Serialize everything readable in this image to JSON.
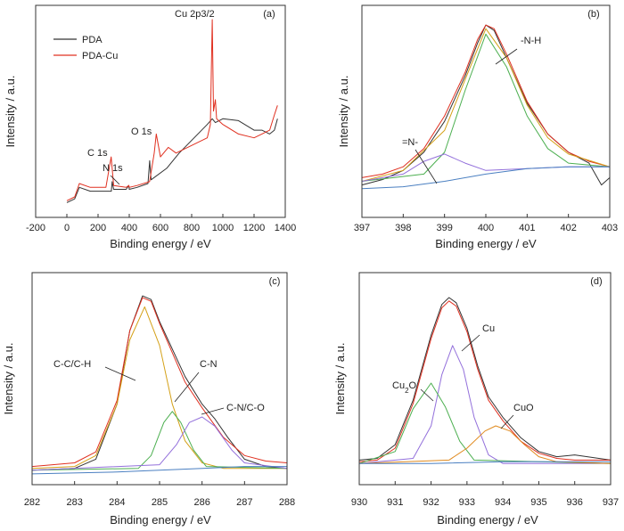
{
  "chart_data": [
    {
      "type": "line",
      "panel_label": "(a)",
      "xlabel": "Binding energy / eV",
      "ylabel": "Intensity / a.u.",
      "xlim": [
        -200,
        1400
      ],
      "xticks": [
        "-200",
        "0",
        "200",
        "400",
        "600",
        "800",
        "1000",
        "1200",
        "1400"
      ],
      "legend": {
        "position": "top-left"
      },
      "series": [
        {
          "name": "PDA",
          "color": "#333333",
          "x": [
            0,
            50,
            80,
            150,
            250,
            285,
            290,
            300,
            380,
            397,
            400,
            450,
            520,
            531,
            540,
            640,
            700,
            720,
            900,
            932,
            952,
            1000,
            1100,
            1200,
            1250,
            1300,
            1330,
            1350
          ],
          "y": [
            0.04,
            0.06,
            0.12,
            0.1,
            0.1,
            0.1,
            0.15,
            0.11,
            0.11,
            0.13,
            0.11,
            0.12,
            0.14,
            0.26,
            0.16,
            0.22,
            0.28,
            0.3,
            0.45,
            0.48,
            0.46,
            0.48,
            0.47,
            0.42,
            0.42,
            0.4,
            0.42,
            0.48
          ]
        },
        {
          "name": "PDA-Cu",
          "color": "#e03020",
          "x": [
            0,
            50,
            80,
            150,
            250,
            284,
            300,
            380,
            397,
            400,
            450,
            530,
            560,
            573,
            600,
            650,
            700,
            900,
            920,
            932,
            940,
            952,
            960,
            1000,
            1100,
            1200,
            1250,
            1300,
            1330,
            1350
          ],
          "y": [
            0.05,
            0.07,
            0.14,
            0.12,
            0.12,
            0.28,
            0.13,
            0.12,
            0.13,
            0.12,
            0.13,
            0.15,
            0.3,
            0.4,
            0.28,
            0.33,
            0.3,
            0.38,
            0.45,
            1.0,
            0.52,
            0.58,
            0.48,
            0.45,
            0.4,
            0.38,
            0.4,
            0.42,
            0.5,
            0.55
          ]
        }
      ],
      "annotations": [
        "C 1s",
        "N 1s",
        "O 1s",
        "Cu 2p3/2"
      ]
    },
    {
      "type": "line",
      "panel_label": "(b)",
      "xlabel": "Binding energy / eV",
      "ylabel": "Intensity / a.u.",
      "xlim": [
        397,
        403
      ],
      "xticks": [
        "397",
        "398",
        "399",
        "400",
        "401",
        "402",
        "403"
      ],
      "series": [
        {
          "color": "#333333",
          "x": [
            397.0,
            397.5,
            398.0,
            398.5,
            399.0,
            399.5,
            399.8,
            400.0,
            400.2,
            400.5,
            401.0,
            401.5,
            402.0,
            402.5,
            402.8,
            403.0
          ],
          "y": [
            0.1,
            0.13,
            0.18,
            0.28,
            0.45,
            0.7,
            0.88,
            0.98,
            0.95,
            0.8,
            0.55,
            0.38,
            0.28,
            0.22,
            0.1,
            0.14
          ]
        },
        {
          "color": "#e03020",
          "x": [
            397.0,
            397.5,
            398.0,
            398.5,
            399.0,
            399.5,
            399.8,
            400.0,
            400.2,
            400.5,
            401.0,
            401.5,
            402.0,
            402.5,
            403.0
          ],
          "y": [
            0.14,
            0.16,
            0.2,
            0.3,
            0.48,
            0.72,
            0.9,
            0.98,
            0.96,
            0.82,
            0.56,
            0.38,
            0.28,
            0.23,
            0.2
          ]
        },
        {
          "color": "#d4a017",
          "x": [
            397.0,
            398.0,
            399.0,
            399.5,
            400.0,
            400.5,
            401.0,
            401.5,
            402.0,
            403.0
          ],
          "y": [
            0.12,
            0.18,
            0.4,
            0.68,
            0.96,
            0.8,
            0.54,
            0.36,
            0.27,
            0.2
          ]
        },
        {
          "color": "#4caf50",
          "x": [
            397.0,
            398.5,
            399.0,
            399.5,
            400.0,
            400.5,
            401.0,
            401.5,
            402.0,
            403.0
          ],
          "y": [
            0.12,
            0.16,
            0.28,
            0.62,
            0.93,
            0.75,
            0.48,
            0.3,
            0.22,
            0.2
          ]
        },
        {
          "color": "#9370db",
          "x": [
            397.0,
            398.0,
            398.5,
            399.0,
            399.5,
            400.0,
            401.0,
            402.0,
            403.0
          ],
          "y": [
            0.12,
            0.16,
            0.23,
            0.27,
            0.22,
            0.18,
            0.19,
            0.2,
            0.2
          ]
        },
        {
          "color": "#4a7fc1",
          "x": [
            397.0,
            398.0,
            399.0,
            400.0,
            401.0,
            402.0,
            403.0
          ],
          "y": [
            0.08,
            0.09,
            0.12,
            0.16,
            0.19,
            0.2,
            0.2
          ]
        }
      ],
      "annotations": [
        "-N-H",
        "=N-"
      ]
    },
    {
      "type": "line",
      "panel_label": "(c)",
      "xlabel": "Binding energy / eV",
      "ylabel": "Intensity / a.u.",
      "xlim": [
        282,
        288
      ],
      "xticks": [
        "282",
        "283",
        "284",
        "285",
        "286",
        "287",
        "288"
      ],
      "series": [
        {
          "color": "#333333",
          "x": [
            282.0,
            283.0,
            283.5,
            284.0,
            284.3,
            284.6,
            284.8,
            285.0,
            285.3,
            285.6,
            286.0,
            286.3,
            286.6,
            287.0,
            287.5,
            288.0
          ],
          "y": [
            0.04,
            0.05,
            0.1,
            0.4,
            0.8,
            0.99,
            0.97,
            0.85,
            0.7,
            0.55,
            0.4,
            0.32,
            0.22,
            0.1,
            0.06,
            0.05
          ]
        },
        {
          "color": "#e03020",
          "x": [
            282.0,
            283.0,
            283.5,
            284.0,
            284.3,
            284.6,
            284.8,
            285.0,
            285.3,
            285.6,
            286.0,
            286.5,
            287.0,
            287.5,
            288.0
          ],
          "y": [
            0.06,
            0.08,
            0.14,
            0.42,
            0.8,
            0.98,
            0.96,
            0.84,
            0.68,
            0.52,
            0.38,
            0.22,
            0.12,
            0.09,
            0.08
          ]
        },
        {
          "color": "#d4a017",
          "x": [
            282.0,
            283.0,
            283.5,
            284.0,
            284.3,
            284.65,
            285.0,
            285.3,
            285.6,
            286.0,
            286.5,
            287.0,
            288.0
          ],
          "y": [
            0.05,
            0.06,
            0.12,
            0.4,
            0.75,
            0.93,
            0.72,
            0.4,
            0.2,
            0.08,
            0.05,
            0.05,
            0.05
          ]
        },
        {
          "color": "#4caf50",
          "x": [
            282.0,
            284.5,
            284.8,
            285.1,
            285.3,
            285.5,
            285.8,
            286.1,
            288.0
          ],
          "y": [
            0.04,
            0.05,
            0.12,
            0.3,
            0.36,
            0.3,
            0.15,
            0.06,
            0.05
          ]
        },
        {
          "color": "#9370db",
          "x": [
            282.0,
            285.0,
            285.4,
            285.7,
            286.0,
            286.3,
            286.7,
            287.0,
            288.0
          ],
          "y": [
            0.04,
            0.07,
            0.18,
            0.3,
            0.33,
            0.28,
            0.15,
            0.08,
            0.05
          ]
        },
        {
          "color": "#4a7fc1",
          "x": [
            282.0,
            284.0,
            285.0,
            286.0,
            287.0,
            288.0
          ],
          "y": [
            0.02,
            0.03,
            0.04,
            0.05,
            0.06,
            0.06
          ]
        }
      ],
      "annotations": [
        "C-C/C-H",
        "C-N",
        "C-N/C-O"
      ]
    },
    {
      "type": "line",
      "panel_label": "(d)",
      "xlabel": "Binding energy / eV",
      "ylabel": "Intensity / a.u.",
      "xlim": [
        930,
        937
      ],
      "xticks": [
        "930",
        "931",
        "932",
        "933",
        "934",
        "935",
        "936",
        "937"
      ],
      "series": [
        {
          "color": "#333333",
          "x": [
            930.0,
            930.5,
            931.0,
            931.5,
            932.0,
            932.3,
            932.5,
            932.7,
            933.0,
            933.3,
            933.6,
            934.0,
            934.5,
            935.0,
            935.5,
            936.0,
            937.0
          ],
          "y": [
            0.05,
            0.06,
            0.14,
            0.4,
            0.78,
            0.96,
            1.0,
            0.97,
            0.82,
            0.6,
            0.42,
            0.3,
            0.18,
            0.1,
            0.07,
            0.08,
            0.05
          ]
        },
        {
          "color": "#e03020",
          "x": [
            930.0,
            930.5,
            931.0,
            931.5,
            932.0,
            932.3,
            932.5,
            932.7,
            933.0,
            933.3,
            933.6,
            934.0,
            934.5,
            935.0,
            935.5,
            936.0,
            937.0
          ],
          "y": [
            0.04,
            0.05,
            0.12,
            0.38,
            0.76,
            0.94,
            0.98,
            0.95,
            0.8,
            0.58,
            0.4,
            0.28,
            0.16,
            0.09,
            0.06,
            0.05,
            0.05
          ]
        },
        {
          "color": "#9370db",
          "x": [
            930.0,
            931.5,
            932.0,
            932.3,
            932.6,
            932.9,
            933.2,
            933.6,
            934.0,
            937.0
          ],
          "y": [
            0.03,
            0.06,
            0.25,
            0.55,
            0.72,
            0.58,
            0.3,
            0.08,
            0.03,
            0.03
          ]
        },
        {
          "color": "#4caf50",
          "x": [
            930.0,
            931.0,
            931.5,
            932.0,
            932.4,
            932.8,
            933.2,
            937.0
          ],
          "y": [
            0.03,
            0.1,
            0.35,
            0.5,
            0.36,
            0.16,
            0.05,
            0.03
          ]
        },
        {
          "color": "#e08a1e",
          "x": [
            930.0,
            932.5,
            933.0,
            933.5,
            933.8,
            934.2,
            934.6,
            935.0,
            935.5,
            937.0
          ],
          "y": [
            0.03,
            0.05,
            0.12,
            0.22,
            0.25,
            0.22,
            0.14,
            0.07,
            0.04,
            0.03
          ]
        },
        {
          "color": "#4a7fc1",
          "x": [
            930.0,
            932.0,
            934.0,
            937.0
          ],
          "y": [
            0.03,
            0.03,
            0.04,
            0.04
          ]
        }
      ],
      "annotations": [
        "Cu2O",
        "Cu",
        "CuO"
      ]
    }
  ]
}
